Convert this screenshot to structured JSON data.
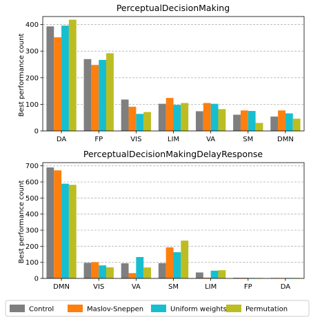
{
  "colors": {
    "grid": "#b0b0b0",
    "axis": "#000000"
  },
  "legend": {
    "placement": "bottom",
    "entries": [
      {
        "name": "Control",
        "color": "#7f7f7f"
      },
      {
        "name": "Maslov-Sneppen",
        "color": "#ff7f0e"
      },
      {
        "name": "Uniform weights",
        "color": "#17becf"
      },
      {
        "name": "Permutation",
        "color": "#bcbd22"
      }
    ]
  },
  "chart_data": [
    {
      "type": "bar",
      "title": "PerceptualDecisionMaking",
      "xlabel": "",
      "ylabel": "Best performance count",
      "ylim": [
        0,
        430
      ],
      "yticks": [
        0,
        100,
        200,
        300,
        400
      ],
      "grid": true,
      "categories": [
        "DA",
        "FP",
        "VIS",
        "LIM",
        "VA",
        "SM",
        "DMN"
      ],
      "series": [
        {
          "name": "Control",
          "values": [
            393,
            270,
            118,
            102,
            74,
            61,
            54
          ]
        },
        {
          "name": "Maslov-Sneppen",
          "values": [
            352,
            248,
            91,
            124,
            105,
            77,
            77
          ]
        },
        {
          "name": "Uniform weights",
          "values": [
            396,
            267,
            64,
            98,
            102,
            75,
            66
          ]
        },
        {
          "name": "Permutation",
          "values": [
            418,
            292,
            71,
            105,
            82,
            30,
            46
          ]
        }
      ]
    },
    {
      "type": "bar",
      "title": "PerceptualDecisionMakingDelayResponse",
      "xlabel": "",
      "ylabel": "Best performance count",
      "ylim": [
        0,
        720
      ],
      "yticks": [
        0,
        100,
        200,
        300,
        400,
        500,
        600,
        700
      ],
      "grid": true,
      "categories": [
        "DMN",
        "VIS",
        "VA",
        "SM",
        "LIM",
        "FP",
        "DA"
      ],
      "series": [
        {
          "name": "Control",
          "values": [
            690,
            97,
            94,
            95,
            37,
            4,
            3
          ]
        },
        {
          "name": "Maslov-Sneppen",
          "values": [
            672,
            101,
            33,
            193,
            5,
            4,
            3
          ]
        },
        {
          "name": "Uniform weights",
          "values": [
            589,
            81,
            133,
            163,
            48,
            3,
            3
          ]
        },
        {
          "name": "Permutation",
          "values": [
            582,
            69,
            68,
            235,
            51,
            3,
            3
          ]
        }
      ]
    }
  ]
}
